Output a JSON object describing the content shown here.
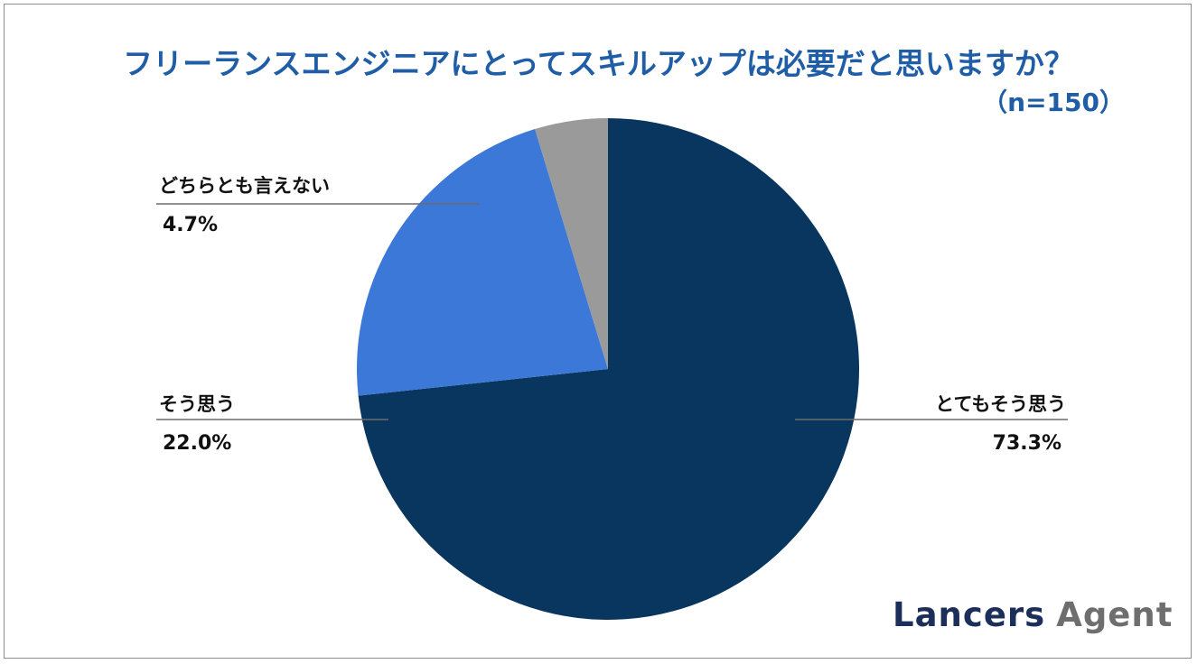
{
  "chart_data": {
    "type": "pie",
    "title": "フリーランスエンジニアにとってスキルアップは必要だと思いますか？",
    "subtitle": "（n=150）",
    "slices": [
      {
        "label": "とてもそう思う",
        "value": 73.3,
        "value_label": "73.3%",
        "color": "#08365f"
      },
      {
        "label": "そう思う",
        "value": 22.0,
        "value_label": "22.0%",
        "color": "#3c78d8"
      },
      {
        "label": "どちらとも言えない",
        "value": 4.7,
        "value_label": "4.7%",
        "color": "#9a9a9a"
      }
    ],
    "start": "12 o'clock",
    "direction": "clockwise"
  },
  "logo": {
    "word1": "Lancers",
    "word2": "Agent"
  }
}
